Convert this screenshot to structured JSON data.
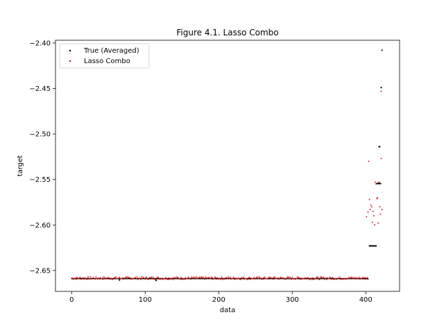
{
  "chart_data": {
    "type": "scatter",
    "title": "Figure 4.1. Lasso Combo",
    "xlabel": "data",
    "ylabel": "target",
    "xlim": [
      -22,
      446
    ],
    "ylim": [
      -2.673,
      -2.397
    ],
    "xticks": [
      0,
      100,
      200,
      300,
      400
    ],
    "yticks": [
      -2.65,
      -2.6,
      -2.55,
      -2.5,
      -2.45,
      -2.4
    ],
    "ytick_labels": [
      "−2.65",
      "−2.60",
      "−2.55",
      "−2.50",
      "−2.45",
      "−2.40"
    ],
    "grid": false,
    "legend_position": "upper-left",
    "colors": {
      "true": "#000000",
      "lasso": "#d62728"
    },
    "baseline": {
      "x_start": 0,
      "x_end": 403,
      "true_value": -2.659,
      "lasso_value": -2.6585,
      "lasso_jitter": 0.0015
    },
    "series": [
      {
        "name": "True (Averaged)",
        "color": "#000000",
        "points": [
          [
            115,
            -2.661
          ],
          [
            65,
            -2.6605
          ],
          [
            405,
            -2.623
          ],
          [
            406,
            -2.623
          ],
          [
            407,
            -2.623
          ],
          [
            408,
            -2.623
          ],
          [
            409,
            -2.623
          ],
          [
            410,
            -2.623
          ],
          [
            411,
            -2.623
          ],
          [
            412,
            -2.623
          ],
          [
            413,
            -2.623
          ],
          [
            414,
            -2.623
          ],
          [
            415,
            -2.5545
          ],
          [
            416,
            -2.5545
          ],
          [
            417,
            -2.5545
          ],
          [
            418,
            -2.5545
          ],
          [
            419,
            -2.5545
          ],
          [
            420,
            -2.5545
          ],
          [
            418,
            -2.514
          ],
          [
            419,
            -2.514
          ],
          [
            422,
            -2.408
          ],
          [
            421,
            -2.449
          ]
        ]
      },
      {
        "name": "Lasso Combo",
        "color": "#d62728",
        "points": [
          [
            403,
            -2.586
          ],
          [
            404,
            -2.53
          ],
          [
            405,
            -2.572
          ],
          [
            406,
            -2.583
          ],
          [
            407,
            -2.578
          ],
          [
            408,
            -2.58
          ],
          [
            409,
            -2.597
          ],
          [
            410,
            -2.585
          ],
          [
            411,
            -2.59
          ],
          [
            412,
            -2.6
          ],
          [
            413,
            -2.553
          ],
          [
            414,
            -2.555
          ],
          [
            415,
            -2.571
          ],
          [
            416,
            -2.57
          ],
          [
            417,
            -2.598
          ],
          [
            418,
            -2.553
          ],
          [
            419,
            -2.58
          ],
          [
            420,
            -2.588
          ],
          [
            421,
            -2.527
          ],
          [
            422,
            -2.583
          ],
          [
            421,
            -2.453
          ],
          [
            401,
            -2.591
          ]
        ]
      }
    ]
  }
}
